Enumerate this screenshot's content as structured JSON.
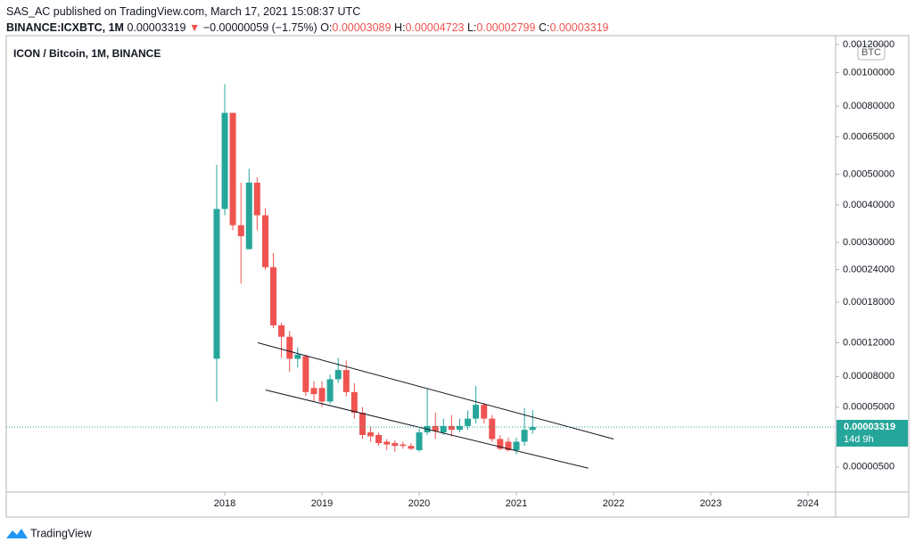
{
  "header": {
    "publisher": "SAS_AC published on TradingView.com, March 17, 2021 15:08:37 UTC",
    "symbol": "BINANCE:ICXBTC, 1M",
    "price": "0.00003319",
    "direction": "▼",
    "change": "−0.00000059 (−1.75%)",
    "ohlc": [
      {
        "label": "O:",
        "value": "0.00003089"
      },
      {
        "label": "H:",
        "value": "0.00004723"
      },
      {
        "label": "L:",
        "value": "0.00002799"
      },
      {
        "label": "C:",
        "value": "0.00003319"
      }
    ]
  },
  "chart_data": {
    "type": "candlestick",
    "title": "ICON / Bitcoin, 1M, BINANCE",
    "currency": "BTC",
    "up_color": "#26a69a",
    "down_color": "#ef5350",
    "log_scale": true,
    "grid": false,
    "xlim": [
      2015.752,
      2024.284
    ],
    "xticks": [
      2018,
      2019,
      2020,
      2021,
      2022,
      2023,
      2024
    ],
    "ylim": [
      0,
      0.00127
    ],
    "yticks": [
      {
        "value": 0.0012,
        "label": "0.00120000"
      },
      {
        "value": 0.001,
        "label": "0.00100000"
      },
      {
        "value": 0.0008,
        "label": "0.00080000"
      },
      {
        "value": 0.00065,
        "label": "0.00065000"
      },
      {
        "value": 0.0005,
        "label": "0.00050000"
      },
      {
        "value": 0.0004,
        "label": "0.00040000"
      },
      {
        "value": 0.0003,
        "label": "0.00030000"
      },
      {
        "value": 0.00024,
        "label": "0.00024000"
      },
      {
        "value": 0.00018,
        "label": "0.00018000"
      },
      {
        "value": 0.00012,
        "label": "0.00012000"
      },
      {
        "value": 8e-05,
        "label": "0.00008000"
      },
      {
        "value": 5e-05,
        "label": "0.00005000"
      },
      {
        "value": 5e-06,
        "label": "0.00000500"
      }
    ],
    "x": [
      2017.917,
      2018.0,
      2018.083,
      2018.167,
      2018.25,
      2018.333,
      2018.417,
      2018.5,
      2018.583,
      2018.667,
      2018.75,
      2018.833,
      2018.917,
      2019.0,
      2019.083,
      2019.167,
      2019.25,
      2019.333,
      2019.417,
      2019.5,
      2019.583,
      2019.667,
      2019.75,
      2019.833,
      2019.917,
      2020.0,
      2020.083,
      2020.167,
      2020.25,
      2020.333,
      2020.417,
      2020.5,
      2020.583,
      2020.667,
      2020.75,
      2020.833,
      2020.917,
      2021.0,
      2021.083,
      2021.167
    ],
    "open": [
      0.0001,
      0.000388,
      0.000765,
      0.000343,
      0.000284,
      0.000471,
      0.00037,
      0.000245,
      0.000144,
      0.000128,
      0.0001,
      0.000103,
      6.8e-05,
      6.8e-05,
      5.5e-05,
      7.7e-05,
      8.7e-05,
      6.4e-05,
      4.5e-05,
      2.9e-05,
      2.7e-05,
      2.2e-05,
      2.1e-05,
      2e-05,
      1.9e-05,
      1.6e-05,
      2.9e-05,
      3.4e-05,
      2.9e-05,
      3.4e-05,
      3.1e-05,
      3.4e-05,
      4e-05,
      5.2e-05,
      4e-05,
      2.4e-05,
      2.2e-05,
      1.6e-05,
      2.2e-05,
      3.089e-05
    ],
    "high": [
      0.000535,
      0.000926,
      0.000765,
      0.000471,
      0.00052,
      0.00049,
      0.00039,
      0.000275,
      0.000148,
      0.000136,
      0.000114,
      0.000105,
      7.5e-05,
      7.5e-05,
      8.2e-05,
      0.000101,
      9.8e-05,
      7.3e-05,
      5e-05,
      3.4e-05,
      2.9e-05,
      2.4e-05,
      2.3e-05,
      2.2e-05,
      2.1e-05,
      3.2e-05,
      6.7e-05,
      4.5e-05,
      4e-05,
      4.3e-05,
      4e-05,
      4.7e-05,
      7e-05,
      5.4e-05,
      4.3e-05,
      2.7e-05,
      2.5e-05,
      2.5e-05,
      4.9e-05,
      4.723e-05
    ],
    "low": [
      5.5e-05,
      0.00037,
      0.00033,
      0.000213,
      0.000284,
      0.00033,
      0.00024,
      0.00014,
      0.000101,
      8.5e-05,
      9e-05,
      6e-05,
      5.5e-05,
      5e-05,
      5.3e-05,
      7.3e-05,
      6e-05,
      4e-05,
      2.4e-05,
      2.2e-05,
      1.9e-05,
      1.6e-05,
      1.5e-05,
      1.7e-05,
      1.6e-05,
      1.5e-05,
      2.7e-05,
      2.4e-05,
      2.7e-05,
      2.6e-05,
      2.9e-05,
      3.1e-05,
      3.6e-05,
      3.6e-05,
      2.2e-05,
      1.6e-05,
      1.5e-05,
      1.3e-05,
      1.9e-05,
      2.799e-05
    ],
    "close": [
      0.000388,
      0.000765,
      0.000343,
      0.000315,
      0.000471,
      0.00037,
      0.000245,
      0.000144,
      0.000128,
      0.0001,
      0.000105,
      6.4e-05,
      6.2e-05,
      5.5e-05,
      7.7e-05,
      8.7e-05,
      6.4e-05,
      4.5e-05,
      2.7e-05,
      2.6e-05,
      2.1e-05,
      2e-05,
      1.9e-05,
      1.9e-05,
      1.7e-05,
      2.9e-05,
      3.4e-05,
      3e-05,
      3.4e-05,
      3.1e-05,
      3.4e-05,
      4e-05,
      5.2e-05,
      4e-05,
      2.4e-05,
      1.7e-05,
      1.6e-05,
      2.2e-05,
      3.1e-05,
      3.319e-05
    ],
    "trendlines": [
      {
        "x": [
          2018.34,
          2022.0
        ],
        "y": [
          0.00012,
          2.4e-05
        ]
      },
      {
        "x": [
          2018.42,
          2021.74
        ],
        "y": [
          6.6e-05,
          4.2e-06
        ]
      }
    ],
    "trendline_color": "#131722",
    "price_line": {
      "value": 3.319e-05,
      "label": "0.00003319",
      "countdown": "14d 9h",
      "color": "#26a69a"
    }
  },
  "footer": {
    "brand": "TradingView"
  }
}
